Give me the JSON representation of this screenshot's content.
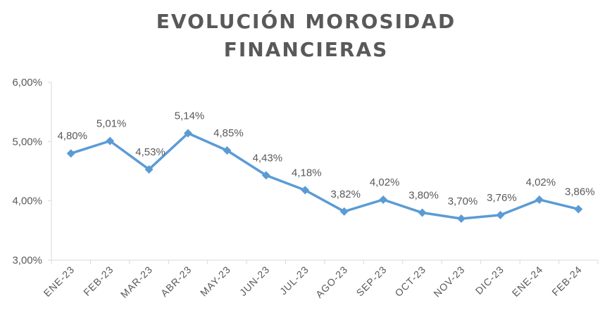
{
  "chart_data": {
    "type": "line",
    "title_lines": [
      "EVOLUCIÓN MOROSIDAD",
      "FINANCIERAS"
    ],
    "categories": [
      "ENE-23",
      "FEB-23",
      "MAR-23",
      "ABR-23",
      "MAY-23",
      "JUN-23",
      "JUL-23",
      "AGO-23",
      "SEP-23",
      "OCT-23",
      "NOV-23",
      "DIC-23",
      "ENE-24",
      "FEB-24"
    ],
    "values": [
      4.8,
      5.01,
      4.53,
      5.14,
      4.85,
      4.43,
      4.18,
      3.82,
      4.02,
      3.8,
      3.7,
      3.76,
      4.02,
      3.86
    ],
    "data_labels": [
      "4,80%",
      "5,01%",
      "4,53%",
      "5,14%",
      "4,85%",
      "4,43%",
      "4,18%",
      "3,82%",
      "4,02%",
      "3,80%",
      "3,70%",
      "3,76%",
      "4,02%",
      "3,86%"
    ],
    "yticks": [
      3,
      4,
      5,
      6
    ],
    "ytick_labels": [
      "3,00%",
      "4,00%",
      "5,00%",
      "6,00%"
    ],
    "ylim": [
      3,
      6
    ],
    "grid": false,
    "legend": "none",
    "line_color": "#5B9BD5",
    "text_color": "#595959",
    "axis_color": "#D9D9D9"
  }
}
